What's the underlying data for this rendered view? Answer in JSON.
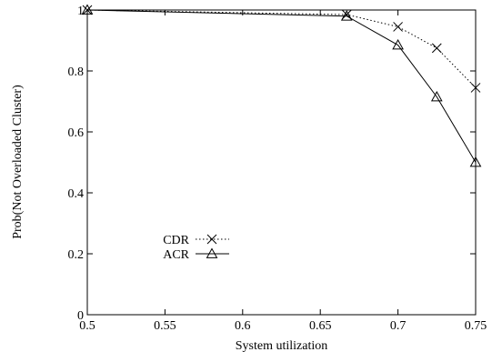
{
  "chart_data": {
    "type": "line",
    "title": "",
    "xlabel": "System utilization",
    "ylabel": "Prob(Not Overloaded Cluster)",
    "xlim": [
      0.5,
      0.75
    ],
    "ylim": [
      0,
      1
    ],
    "xticks": [
      "0.5",
      "0.55",
      "0.6",
      "0.65",
      "0.7",
      "0.75"
    ],
    "yticks": [
      "0",
      "0.2",
      "0.4",
      "0.6",
      "0.8",
      "1"
    ],
    "grid": false,
    "legend_position": "left, lower-middle",
    "x": [
      0.5,
      0.667,
      0.7,
      0.725,
      0.75
    ],
    "series": [
      {
        "name": "CDR",
        "marker": "cross",
        "line": "dotted",
        "values": [
          1.0,
          0.985,
          0.945,
          0.875,
          0.745
        ]
      },
      {
        "name": "ACR",
        "marker": "triangle",
        "line": "solid",
        "values": [
          1.0,
          0.98,
          0.885,
          0.715,
          0.5
        ]
      }
    ]
  }
}
